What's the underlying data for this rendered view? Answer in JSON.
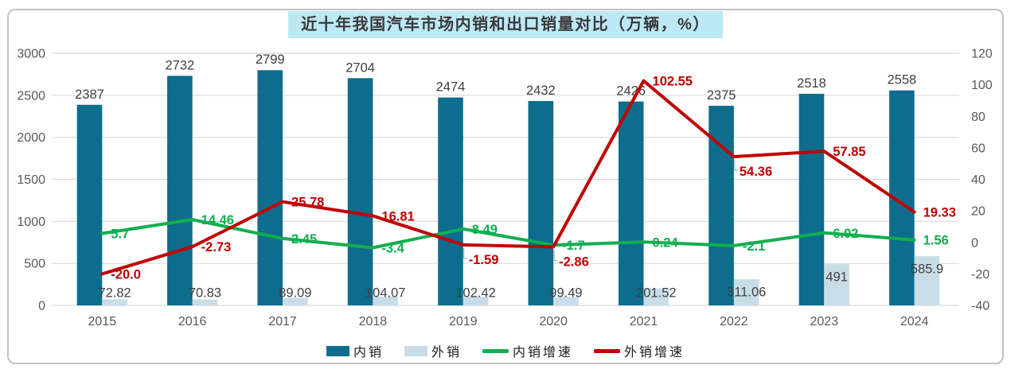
{
  "title": "近十年我国汽车市场内销和出口销量对比（万辆，%）",
  "colors": {
    "title_highlight": "#bde8f5",
    "title_text": "#3a3a3a",
    "card_border": "#c2c2c2",
    "grid": "#dadada",
    "axis_label": "#595959",
    "value_label": "#404040",
    "leader_line": "#a6a6a6",
    "domestic_bar": "#0e6d8c",
    "export_bar": "#c9dde8",
    "domestic_growth_line": "#12ae4f",
    "export_growth_line": "#c00000"
  },
  "chart_data": {
    "type": "combo",
    "title": "近十年我国汽车市场内销和出口销量对比（万辆，%）",
    "categories": [
      "2015",
      "2016",
      "2017",
      "2018",
      "2019",
      "2020",
      "2021",
      "2022",
      "2023",
      "2024"
    ],
    "bar_series": [
      {
        "name": "内销",
        "axis": "left",
        "color": "#0e6d8c",
        "values": [
          2387,
          2732,
          2799,
          2704,
          2474,
          2432,
          2426,
          2375,
          2518,
          2558
        ],
        "labels": [
          "2387",
          "2732",
          "2799",
          "2704",
          "2474",
          "2432",
          "2426",
          "2375",
          "2518",
          "2558"
        ],
        "label_placement": "outside-above"
      },
      {
        "name": "外销",
        "axis": "left",
        "color": "#c9dde8",
        "values": [
          72.82,
          70.83,
          89.09,
          104.07,
          102.42,
          99.49,
          201.52,
          311.06,
          491,
          585.9
        ],
        "labels": [
          "72.82",
          "70.83",
          "89.09",
          "104.07",
          "102.42",
          "99.49",
          "201.52",
          "311.06",
          "491",
          "585.9"
        ],
        "label_placement": "inside-top"
      }
    ],
    "line_series": [
      {
        "name": "内销增速",
        "axis": "right",
        "color": "#12ae4f",
        "values": [
          5.7,
          14.46,
          2.45,
          -3.4,
          8.49,
          -1.7,
          0.24,
          -2.1,
          6.02,
          1.56
        ],
        "labels": [
          "5.7",
          "14.46",
          "2.45",
          "-3.4",
          "8.49",
          "-1.7",
          "0.24",
          "-2.1",
          "6.02",
          "1.56"
        ],
        "label_placement": [
          "right",
          "right",
          "right",
          "right",
          "right",
          "right",
          "right",
          "right",
          "right",
          "right"
        ]
      },
      {
        "name": "外销增速",
        "axis": "right",
        "color": "#c00000",
        "values": [
          -20.0,
          -2.73,
          25.78,
          16.81,
          -1.59,
          -2.86,
          102.55,
          54.36,
          57.85,
          19.33
        ],
        "labels": [
          "-20.0",
          "-2.73",
          "25.78",
          "16.81",
          "-1.59",
          "-2.86",
          "102.55",
          "54.36",
          "57.85",
          "19.33"
        ],
        "label_placement": [
          "right",
          "right",
          "right",
          "right",
          "below",
          "below",
          "right",
          "below",
          "right",
          "right"
        ]
      }
    ],
    "left_axis": {
      "min": 0,
      "max": 3000,
      "step": 500,
      "ticks": [
        0,
        500,
        1000,
        1500,
        2000,
        2500,
        3000
      ]
    },
    "right_axis": {
      "min": -40,
      "max": 120,
      "step": 20,
      "ticks": [
        -40,
        -20,
        0,
        20,
        40,
        60,
        80,
        100,
        120
      ]
    },
    "grid": true,
    "legend_position": "bottom"
  },
  "legend": [
    {
      "label": "内销",
      "type": "bar",
      "color": "#0e6d8c"
    },
    {
      "label": "外销",
      "type": "bar",
      "color": "#c9dde8"
    },
    {
      "label": "内销增速",
      "type": "line",
      "color": "#12ae4f"
    },
    {
      "label": "外销增速",
      "type": "line",
      "color": "#c00000"
    }
  ]
}
